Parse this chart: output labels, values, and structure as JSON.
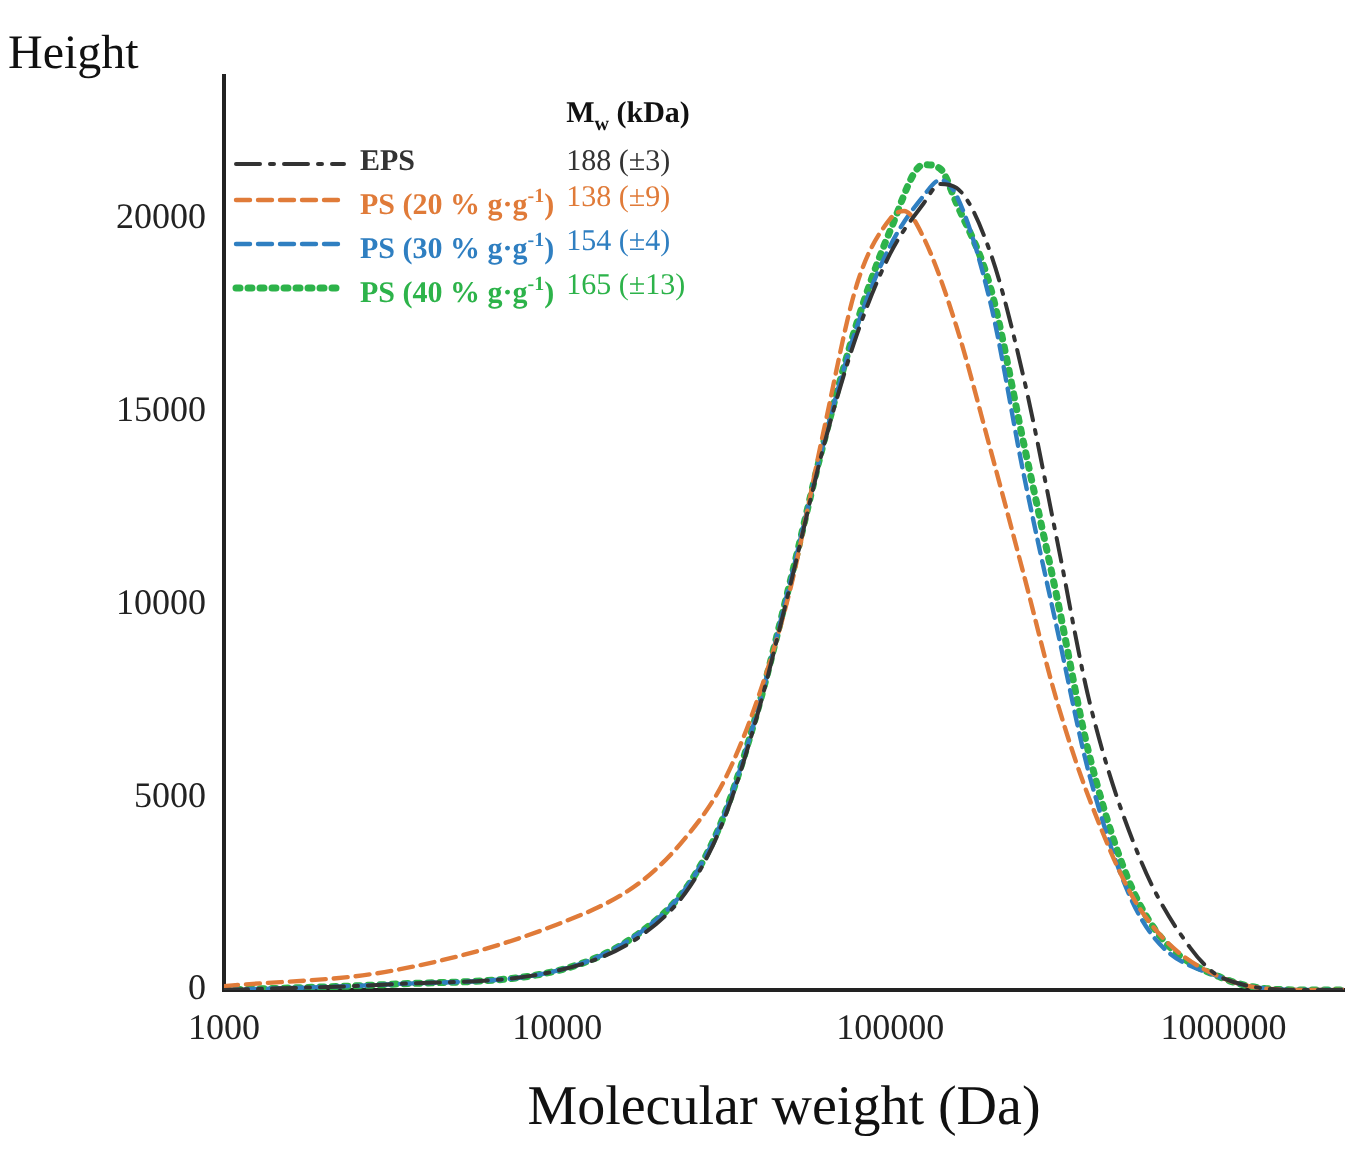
{
  "chart_data": {
    "type": "line",
    "xlabel": "Molecular weight (Da)",
    "ylabel": "Height",
    "legend_title": "M$_{w}$ (kDa)",
    "log": "x",
    "xlim": [
      1000,
      2300000
    ],
    "xticks": [
      1000,
      10000,
      100000,
      1000000
    ],
    "ylim": [
      0,
      23700
    ],
    "yticks": [
      0,
      5000,
      10000,
      15000,
      20000
    ],
    "grid": false,
    "legend": "top left",
    "marker": "none",
    "annotations": [
      "188 (±3)",
      "138 (±9)",
      "154 (±4)",
      "165 (±13)"
    ],
    "series": [
      {
        "name": "EPS",
        "color": "#333333",
        "line_style": "dashdot",
        "x": [
          1000,
          3200,
          10000,
          17800,
          25100,
          31600,
          39800,
          50100,
          63100,
          79400,
          100000,
          126000,
          141000,
          158000,
          200000,
          251000,
          316000,
          398000,
          562000,
          794000,
          1000000,
          1780000,
          2300000
        ],
        "values": [
          0,
          150,
          500,
          1400,
          2700,
          4400,
          7100,
          10500,
          14100,
          17000,
          19100,
          20400,
          20900,
          20800,
          19100,
          15900,
          11700,
          7400,
          3400,
          1100,
          300,
          0,
          0
        ]
      },
      {
        "name": "PS (20 % g·g$^{-1}$)",
        "color": "#e07b39",
        "line_style": "dashed",
        "x": [
          1000,
          3200,
          10000,
          17800,
          25100,
          31600,
          39800,
          50100,
          63100,
          79400,
          100000,
          110000,
          126000,
          158000,
          200000,
          251000,
          316000,
          398000,
          562000,
          1000000,
          1780000,
          2300000
        ],
        "values": [
          100,
          500,
          1700,
          2800,
          4100,
          5400,
          7500,
          10400,
          14500,
          18300,
          20000,
          20200,
          19500,
          17200,
          14000,
          10800,
          7500,
          4900,
          2100,
          300,
          0,
          0
        ]
      },
      {
        "name": "PS (30 % g·g$^{-1}$)",
        "color": "#2f7fc1",
        "line_style": "dashed",
        "x": [
          1000,
          3200,
          10000,
          17800,
          25100,
          31600,
          39800,
          50100,
          63100,
          79400,
          100000,
          126000,
          141000,
          158000,
          200000,
          251000,
          316000,
          398000,
          562000,
          1000000,
          1780000,
          2300000
        ],
        "values": [
          0,
          150,
          500,
          1500,
          2800,
          4500,
          7200,
          10600,
          14200,
          17200,
          19300,
          20600,
          21000,
          20600,
          17800,
          13400,
          9400,
          5500,
          1900,
          300,
          0,
          0
        ]
      },
      {
        "name": "PS (40 % g·g$^{-1}$)",
        "color": "#2db34a",
        "line_style": "dotted",
        "x": [
          1000,
          3200,
          10000,
          17800,
          25100,
          31600,
          39800,
          50100,
          63100,
          79400,
          100000,
          126000,
          141000,
          158000,
          200000,
          251000,
          316000,
          398000,
          562000,
          1000000,
          1780000,
          2300000
        ],
        "values": [
          0,
          150,
          500,
          1500,
          2800,
          4500,
          7200,
          10600,
          14200,
          17300,
          19700,
          21400,
          21300,
          20400,
          18200,
          14200,
          10200,
          6000,
          2200,
          300,
          0,
          0
        ]
      }
    ]
  }
}
